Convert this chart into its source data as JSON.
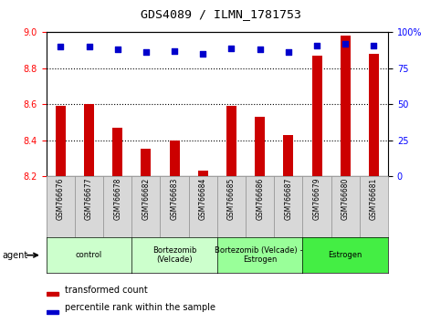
{
  "title": "GDS4089 / ILMN_1781753",
  "samples": [
    "GSM766676",
    "GSM766677",
    "GSM766678",
    "GSM766682",
    "GSM766683",
    "GSM766684",
    "GSM766685",
    "GSM766686",
    "GSM766687",
    "GSM766679",
    "GSM766680",
    "GSM766681"
  ],
  "bar_values": [
    8.59,
    8.6,
    8.47,
    8.35,
    8.4,
    8.23,
    8.59,
    8.53,
    8.43,
    8.87,
    8.98,
    8.88
  ],
  "dot_values": [
    90,
    90,
    88,
    86,
    87,
    85,
    89,
    88,
    86,
    91,
    92,
    91
  ],
  "ylim_left": [
    8.2,
    9.0
  ],
  "ylim_right": [
    0,
    100
  ],
  "yticks_left": [
    8.2,
    8.4,
    8.6,
    8.8,
    9.0
  ],
  "yticks_right": [
    0,
    25,
    50,
    75,
    100
  ],
  "bar_color": "#cc0000",
  "dot_color": "#0000cc",
  "groups": [
    {
      "label": "control",
      "start": 0,
      "end": 3,
      "color": "#ccffcc"
    },
    {
      "label": "Bortezomib\n(Velcade)",
      "start": 3,
      "end": 6,
      "color": "#ccffcc"
    },
    {
      "label": "Bortezomib (Velcade) +\nEstrogen",
      "start": 6,
      "end": 9,
      "color": "#99ff99"
    },
    {
      "label": "Estrogen",
      "start": 9,
      "end": 12,
      "color": "#44ee44"
    }
  ],
  "agent_label": "agent",
  "legend_bar_label": "transformed count",
  "legend_dot_label": "percentile rank within the sample",
  "grid_yticks": [
    8.4,
    8.6,
    8.8
  ],
  "xtick_bg": "#d8d8d8",
  "title_fontsize": 9.5
}
